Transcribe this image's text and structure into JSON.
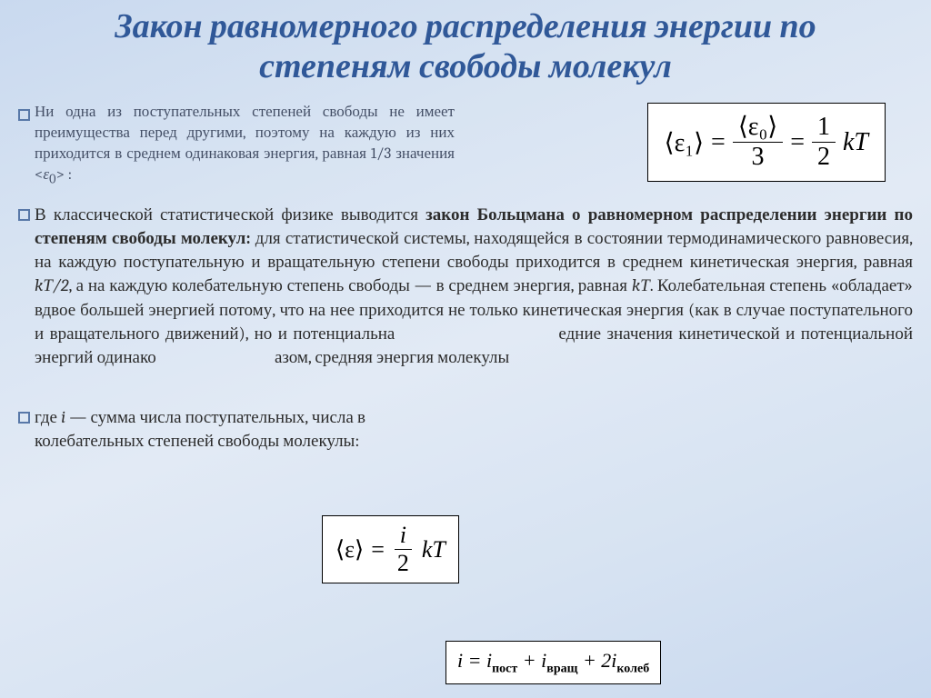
{
  "title": "Закон равномерного распределения энергии по степеням свободы молекул",
  "para1_pre": "Ни одна из поступательных степеней свободы не имеет преимущества перед другими, поэтому на каждую из них приходится в среднем одинаковая энергия, равная 1/3 значения <",
  "para1_eps": "ε",
  "para1_sub": "0",
  "para1_post": "> :",
  "eq1": {
    "lhs": "⟨ε₁⟩",
    "frac1_num": "⟨ε₀⟩",
    "frac1_den": "3",
    "frac2_num": "1",
    "frac2_den": "2",
    "tail": "kT"
  },
  "para2_a": "В классической статистической физике выводится ",
  "para2_b": "закон Больцмана о равномерном распределении энергии по степеням свободы молекул:",
  "para2_c": " для статистической системы, находящейся в состоянии термодинамического равновесия, на каждую поступательную и вращательную степени свободы приходится в среднем кинетическая энергия, равная ",
  "para2_d": "kТ/2",
  "para2_e": ", а на каждую колебательную степень свободы — в среднем энергия, равная ",
  "para2_f": "kТ",
  "para2_g": ". Колебательная степень «обладает» вдвое большей энергией потому, что на нее приходится не только кинетическая энергия (как в случае поступательного и вращательного движений), но и потенциальна",
  "para2_h": "едние значения кинетической и потенциальной энергий одинако",
  "para2_i": "азом, средняя энергия молекулы",
  "eq2": {
    "lhs": "⟨ε⟩",
    "num": "i",
    "den": "2",
    "tail": "kT"
  },
  "para3_a": "где ",
  "para3_b": "i",
  "para3_c": " — сумма числа поступательных, числа в",
  "para3_d": "колебательных степеней свободы молекулы:",
  "eq3": {
    "lhs": "i",
    "t1": "i",
    "s1": "пост",
    "t2": "i",
    "s2": "вращ",
    "t3": "2i",
    "s3": "колеб"
  }
}
